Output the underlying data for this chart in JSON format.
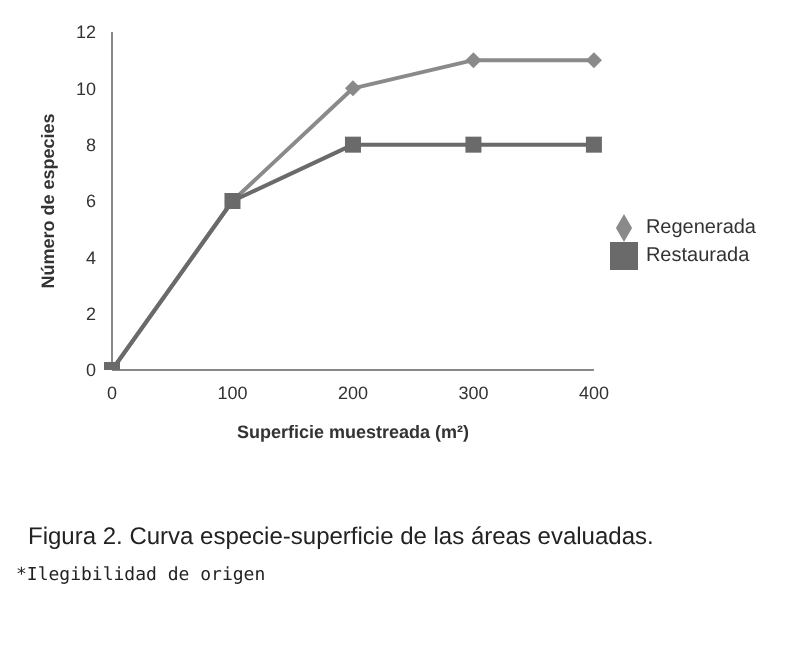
{
  "chart_data": {
    "type": "line",
    "xlabel": "Superficie muestreada (m²)",
    "ylabel": "Número de especies",
    "x": [
      0,
      100,
      200,
      300,
      400
    ],
    "xlim": [
      0,
      400
    ],
    "xticks": [
      0,
      100,
      200,
      300,
      400
    ],
    "ylim": [
      0,
      12
    ],
    "yticks": [
      0,
      2,
      4,
      6,
      8,
      10,
      12
    ],
    "grid": false,
    "legend": "right",
    "line_style": "solid",
    "series": [
      {
        "name": "Regenerada",
        "color": "#8a8a8a",
        "marker": "diamond",
        "values": [
          0,
          6,
          10,
          11,
          11
        ]
      },
      {
        "name": "Restaurada",
        "color": "#6a6a6a",
        "marker": "square",
        "values": [
          0,
          6,
          8,
          8,
          8
        ]
      }
    ],
    "annotations": [
      "Figura 2. Curva especie-superficie de las áreas evaluadas.",
      "*Ilegibilidad de origen"
    ]
  }
}
